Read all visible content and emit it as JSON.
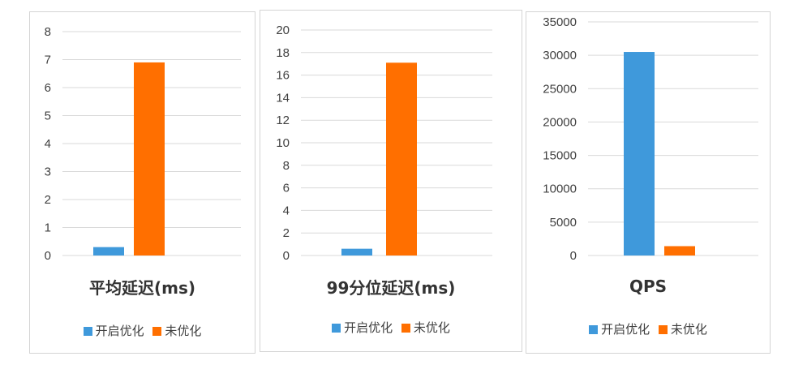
{
  "colors": {
    "series_on": "#3f99db",
    "series_off": "#ff6f00",
    "grid": "#d9d9d9",
    "tick": "#404040"
  },
  "chart_data": [
    {
      "type": "bar",
      "title": "平均延迟(ms)",
      "categories": [
        ""
      ],
      "series": [
        {
          "name": "开启优化",
          "values": [
            0.3
          ]
        },
        {
          "name": "未优化",
          "values": [
            6.9
          ]
        }
      ],
      "ylim": [
        0,
        8
      ],
      "yticks": [
        "0",
        "1",
        "2",
        "3",
        "4",
        "5",
        "6",
        "7",
        "8"
      ],
      "grid": true,
      "legend": "bottom"
    },
    {
      "type": "bar",
      "title": "99分位延迟(ms)",
      "categories": [
        ""
      ],
      "series": [
        {
          "name": "开启优化",
          "values": [
            0.6
          ]
        },
        {
          "name": "未优化",
          "values": [
            17.1
          ]
        }
      ],
      "ylim": [
        0,
        20
      ],
      "yticks": [
        "0",
        "2",
        "4",
        "6",
        "8",
        "10",
        "12",
        "14",
        "16",
        "18",
        "20"
      ],
      "grid": true,
      "legend": "bottom"
    },
    {
      "type": "bar",
      "title": "QPS",
      "categories": [
        ""
      ],
      "series": [
        {
          "name": "开启优化",
          "values": [
            30500
          ]
        },
        {
          "name": "未优化",
          "values": [
            1400
          ]
        }
      ],
      "ylim": [
        0,
        35000
      ],
      "yticks": [
        "0",
        "5000",
        "10000",
        "15000",
        "20000",
        "25000",
        "30000",
        "35000"
      ],
      "grid": true,
      "legend": "bottom"
    }
  ]
}
